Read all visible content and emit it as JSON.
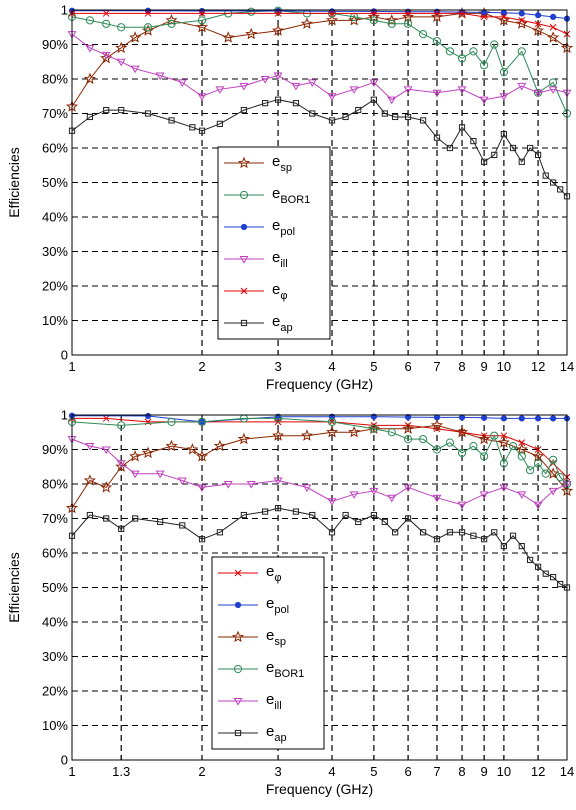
{
  "chart_data": [
    {
      "type": "line",
      "xlabel": "Frequency (GHz)",
      "ylabel": "Efficiencies",
      "xscale": "log",
      "xlim": [
        1,
        14
      ],
      "ylim": [
        0,
        1
      ],
      "xticks": [
        1,
        2,
        3,
        4,
        5,
        6,
        7,
        8,
        9,
        10,
        12,
        14
      ],
      "xtick_labels": [
        "1",
        "2",
        "3",
        "4",
        "5",
        "6",
        "7",
        "8",
        "9",
        "10",
        "12",
        "14"
      ],
      "yticks": [
        0,
        0.1,
        0.2,
        0.3,
        0.4,
        0.5,
        0.6,
        0.7,
        0.8,
        0.9,
        1
      ],
      "ytick_labels": [
        "0",
        "10%",
        "20%",
        "30%",
        "40%",
        "50%",
        "60%",
        "70%",
        "80%",
        "90%",
        "1"
      ],
      "grid": "dashed",
      "legend_position": "center-left",
      "legend": [
        {
          "base": "e",
          "sub": "sp",
          "series": "e_sp"
        },
        {
          "base": "e",
          "sub": "BOR1",
          "series": "e_BOR1"
        },
        {
          "base": "e",
          "sub": "pol",
          "series": "e_pol"
        },
        {
          "base": "e",
          "sub": "ill",
          "series": "e_ill"
        },
        {
          "base": "e",
          "sub": "φ",
          "series": "e_phi"
        },
        {
          "base": "e",
          "sub": "ap",
          "series": "e_ap"
        }
      ],
      "series": [
        {
          "name": "e_sp",
          "color": "#8b2500",
          "marker": "star",
          "x": [
            1,
            1.1,
            1.2,
            1.3,
            1.4,
            1.5,
            1.7,
            2,
            2.3,
            2.6,
            3,
            3.5,
            4,
            4.5,
            5,
            5.5,
            6,
            7,
            8,
            9,
            10,
            11,
            12,
            13,
            14
          ],
          "y": [
            0.72,
            0.8,
            0.86,
            0.89,
            0.92,
            0.94,
            0.97,
            0.95,
            0.92,
            0.93,
            0.94,
            0.96,
            0.97,
            0.97,
            0.98,
            0.97,
            0.98,
            0.98,
            0.99,
            0.99,
            0.97,
            0.96,
            0.94,
            0.92,
            0.89
          ]
        },
        {
          "name": "e_BOR1",
          "color": "#2e8b57",
          "marker": "circle",
          "x": [
            1,
            1.1,
            1.2,
            1.3,
            1.5,
            1.7,
            2,
            2.3,
            2.6,
            3,
            3.5,
            4,
            4.5,
            5,
            5.5,
            6,
            6.5,
            7,
            7.5,
            8,
            8.5,
            9,
            9.5,
            10,
            11,
            12,
            13,
            14
          ],
          "y": [
            0.98,
            0.97,
            0.96,
            0.95,
            0.95,
            0.96,
            0.97,
            0.99,
            0.995,
            0.998,
            0.99,
            0.99,
            0.98,
            0.97,
            0.96,
            0.96,
            0.93,
            0.91,
            0.88,
            0.86,
            0.88,
            0.84,
            0.9,
            0.82,
            0.88,
            0.76,
            0.79,
            0.7
          ]
        },
        {
          "name": "e_pol",
          "color": "#1f3fcf",
          "marker": "dot",
          "x": [
            1,
            1.5,
            2,
            3,
            4,
            5,
            6,
            7,
            8,
            9,
            10,
            11,
            12,
            13,
            14
          ],
          "y": [
            0.998,
            0.998,
            0.997,
            0.997,
            0.996,
            0.996,
            0.995,
            0.995,
            0.994,
            0.993,
            0.992,
            0.99,
            0.985,
            0.98,
            0.975
          ]
        },
        {
          "name": "e_ill",
          "color": "#c040c0",
          "marker": "triangle-down",
          "x": [
            1,
            1.1,
            1.2,
            1.3,
            1.4,
            1.6,
            1.8,
            2,
            2.2,
            2.5,
            2.8,
            3,
            3.3,
            3.6,
            4,
            4.5,
            5,
            5.5,
            6,
            7,
            8,
            9,
            10,
            11,
            12,
            13,
            14
          ],
          "y": [
            0.93,
            0.89,
            0.87,
            0.85,
            0.83,
            0.81,
            0.79,
            0.75,
            0.77,
            0.78,
            0.8,
            0.81,
            0.78,
            0.79,
            0.75,
            0.77,
            0.79,
            0.74,
            0.77,
            0.76,
            0.77,
            0.74,
            0.75,
            0.78,
            0.76,
            0.77,
            0.76
          ]
        },
        {
          "name": "e_phi",
          "color": "#e00000",
          "marker": "x",
          "x": [
            1,
            1.2,
            1.5,
            2,
            3,
            4,
            5,
            6,
            7,
            8,
            9,
            10,
            11,
            12,
            13,
            14
          ],
          "y": [
            0.99,
            0.99,
            0.99,
            0.99,
            0.99,
            0.99,
            0.99,
            0.99,
            0.99,
            0.99,
            0.98,
            0.98,
            0.97,
            0.96,
            0.95,
            0.93
          ]
        },
        {
          "name": "e_ap",
          "color": "#222222",
          "marker": "square",
          "x": [
            1,
            1.1,
            1.2,
            1.3,
            1.5,
            1.7,
            1.9,
            2,
            2.2,
            2.5,
            2.8,
            3,
            3.3,
            3.6,
            4,
            4.3,
            4.6,
            5,
            5.3,
            5.6,
            6,
            6.5,
            7,
            7.5,
            8,
            8.5,
            9,
            9.5,
            10,
            10.5,
            11,
            11.5,
            12,
            12.5,
            13,
            13.5,
            14
          ],
          "y": [
            0.65,
            0.69,
            0.71,
            0.71,
            0.7,
            0.68,
            0.66,
            0.65,
            0.67,
            0.71,
            0.73,
            0.74,
            0.73,
            0.7,
            0.68,
            0.69,
            0.71,
            0.74,
            0.7,
            0.69,
            0.69,
            0.68,
            0.63,
            0.6,
            0.66,
            0.62,
            0.56,
            0.58,
            0.64,
            0.6,
            0.56,
            0.6,
            0.58,
            0.52,
            0.5,
            0.48,
            0.46
          ]
        }
      ]
    },
    {
      "type": "line",
      "xlabel": "Frequency (GHz)",
      "ylabel": "Efficiencies",
      "xscale": "log",
      "xlim": [
        1,
        14
      ],
      "ylim": [
        0,
        1
      ],
      "xticks": [
        1,
        1.3,
        2,
        3,
        4,
        5,
        6,
        7,
        8,
        9,
        10,
        12,
        14
      ],
      "xtick_labels": [
        "1",
        "1.3",
        "2",
        "3",
        "4",
        "5",
        "6",
        "7",
        "8",
        "9",
        "10",
        "12",
        "14"
      ],
      "yticks": [
        0,
        0.1,
        0.2,
        0.3,
        0.4,
        0.5,
        0.6,
        0.7,
        0.8,
        0.9,
        1
      ],
      "ytick_labels": [
        "0",
        "10%",
        "20%",
        "30%",
        "40%",
        "50%",
        "60%",
        "70%",
        "80%",
        "90%",
        "1"
      ],
      "grid": "dashed",
      "legend_position": "center-left",
      "legend": [
        {
          "base": "e",
          "sub": "φ",
          "series": "e_phi"
        },
        {
          "base": "e",
          "sub": "pol",
          "series": "e_pol"
        },
        {
          "base": "e",
          "sub": "sp",
          "series": "e_sp"
        },
        {
          "base": "e",
          "sub": "BOR1",
          "series": "e_BOR1"
        },
        {
          "base": "e",
          "sub": "ill",
          "series": "e_ill"
        },
        {
          "base": "e",
          "sub": "ap",
          "series": "e_ap"
        }
      ],
      "series": [
        {
          "name": "e_phi",
          "color": "#e00000",
          "marker": "x",
          "x": [
            1,
            1.2,
            1.5,
            2,
            3,
            4,
            5,
            6,
            7,
            8,
            9,
            10,
            11,
            12,
            13,
            14
          ],
          "y": [
            0.99,
            0.99,
            0.98,
            0.98,
            0.98,
            0.98,
            0.97,
            0.97,
            0.96,
            0.95,
            0.94,
            0.94,
            0.92,
            0.9,
            0.86,
            0.82
          ]
        },
        {
          "name": "e_pol",
          "color": "#1f3fcf",
          "marker": "dot",
          "x": [
            1,
            1.5,
            2,
            3,
            4,
            5,
            6,
            7,
            8,
            9,
            10,
            11,
            12,
            13,
            14
          ],
          "y": [
            0.998,
            0.997,
            0.98,
            0.995,
            0.995,
            0.995,
            0.994,
            0.993,
            0.993,
            0.992,
            0.99,
            0.99,
            0.99,
            0.99,
            0.99
          ]
        },
        {
          "name": "e_sp",
          "color": "#8b2500",
          "marker": "star",
          "x": [
            1,
            1.1,
            1.2,
            1.3,
            1.4,
            1.5,
            1.7,
            1.9,
            2,
            2.2,
            2.5,
            3,
            3.5,
            4,
            4.5,
            5,
            6,
            7,
            8,
            9,
            10,
            11,
            12,
            13,
            14
          ],
          "y": [
            0.73,
            0.81,
            0.79,
            0.85,
            0.88,
            0.89,
            0.91,
            0.9,
            0.88,
            0.91,
            0.93,
            0.94,
            0.94,
            0.95,
            0.95,
            0.96,
            0.96,
            0.97,
            0.95,
            0.93,
            0.92,
            0.9,
            0.88,
            0.83,
            0.78
          ]
        },
        {
          "name": "e_BOR1",
          "color": "#2e8b57",
          "marker": "circle",
          "x": [
            1,
            1.3,
            1.7,
            2,
            2.5,
            3,
            4,
            5,
            5.5,
            6,
            6.5,
            7,
            7.5,
            8,
            8.5,
            9,
            9.5,
            10,
            10.5,
            11,
            11.5,
            12,
            12.5,
            13,
            13.5,
            14
          ],
          "y": [
            0.98,
            0.97,
            0.98,
            0.98,
            0.99,
            0.99,
            0.98,
            0.96,
            0.95,
            0.93,
            0.93,
            0.9,
            0.92,
            0.89,
            0.91,
            0.88,
            0.94,
            0.86,
            0.91,
            0.88,
            0.84,
            0.86,
            0.83,
            0.87,
            0.82,
            0.8
          ]
        },
        {
          "name": "e_ill",
          "color": "#c040c0",
          "marker": "triangle-down",
          "x": [
            1,
            1.1,
            1.2,
            1.3,
            1.4,
            1.6,
            1.8,
            2,
            2.3,
            2.6,
            3,
            3.5,
            4,
            4.5,
            5,
            5.5,
            6,
            7,
            8,
            9,
            10,
            11,
            12,
            13,
            14
          ],
          "y": [
            0.93,
            0.91,
            0.9,
            0.86,
            0.83,
            0.83,
            0.81,
            0.79,
            0.8,
            0.8,
            0.81,
            0.79,
            0.75,
            0.77,
            0.78,
            0.76,
            0.79,
            0.76,
            0.74,
            0.77,
            0.79,
            0.77,
            0.74,
            0.78,
            0.8
          ]
        },
        {
          "name": "e_ap",
          "color": "#222222",
          "marker": "square",
          "x": [
            1,
            1.1,
            1.2,
            1.3,
            1.4,
            1.6,
            1.8,
            2,
            2.2,
            2.5,
            2.8,
            3,
            3.3,
            3.6,
            4,
            4.3,
            4.6,
            5,
            5.3,
            5.6,
            6,
            6.5,
            7,
            7.5,
            8,
            8.5,
            9,
            9.5,
            10,
            10.5,
            11,
            11.5,
            12,
            12.5,
            13,
            13.5,
            14
          ],
          "y": [
            0.65,
            0.71,
            0.7,
            0.67,
            0.7,
            0.69,
            0.68,
            0.64,
            0.66,
            0.71,
            0.72,
            0.73,
            0.72,
            0.71,
            0.66,
            0.71,
            0.69,
            0.71,
            0.69,
            0.66,
            0.7,
            0.66,
            0.64,
            0.66,
            0.66,
            0.65,
            0.64,
            0.66,
            0.62,
            0.65,
            0.62,
            0.58,
            0.56,
            0.54,
            0.53,
            0.51,
            0.5
          ]
        }
      ]
    }
  ]
}
